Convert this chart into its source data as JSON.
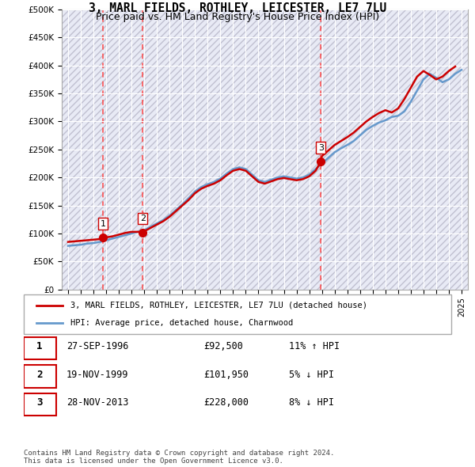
{
  "title": "3, MARL FIELDS, ROTHLEY, LEICESTER, LE7 7LU",
  "subtitle": "Price paid vs. HM Land Registry's House Price Index (HPI)",
  "hpi_label": "HPI: Average price, detached house, Charnwood",
  "property_label": "3, MARL FIELDS, ROTHLEY, LEICESTER, LE7 7LU (detached house)",
  "copyright": "Contains HM Land Registry data © Crown copyright and database right 2024.\nThis data is licensed under the Open Government Licence v3.0.",
  "sales": [
    {
      "num": 1,
      "date": "27-SEP-1996",
      "price": 92500,
      "hpi_diff": "11% ↑ HPI",
      "year": 1996.75
    },
    {
      "num": 2,
      "date": "19-NOV-1999",
      "price": 101950,
      "hpi_diff": "5% ↓ HPI",
      "year": 1999.88
    },
    {
      "num": 3,
      "date": "28-NOV-2013",
      "price": 228000,
      "hpi_diff": "8% ↓ HPI",
      "year": 2013.91
    }
  ],
  "ylim": [
    0,
    500000
  ],
  "yticks": [
    0,
    50000,
    100000,
    150000,
    200000,
    250000,
    300000,
    350000,
    400000,
    450000,
    500000
  ],
  "xlim_start": 1993.5,
  "xlim_end": 2025.5,
  "hpi_color": "#6699cc",
  "price_color": "#cc0000",
  "dashed_line_color": "#ff4444",
  "background_hatch_color": "#e8e8f0",
  "grid_color": "#cccccc",
  "sale_marker_color": "#cc0000",
  "hpi_x": [
    1994,
    1994.5,
    1995,
    1995.5,
    1996,
    1996.5,
    1997,
    1997.5,
    1998,
    1998.5,
    1999,
    1999.5,
    2000,
    2000.5,
    2001,
    2001.5,
    2002,
    2002.5,
    2003,
    2003.5,
    2004,
    2004.5,
    2005,
    2005.5,
    2006,
    2006.5,
    2007,
    2007.5,
    2008,
    2008.5,
    2009,
    2009.5,
    2010,
    2010.5,
    2011,
    2011.5,
    2012,
    2012.5,
    2013,
    2013.5,
    2014,
    2014.5,
    2015,
    2015.5,
    2016,
    2016.5,
    2017,
    2017.5,
    2018,
    2018.5,
    2019,
    2019.5,
    2020,
    2020.5,
    2021,
    2021.5,
    2022,
    2022.5,
    2023,
    2023.5,
    2024,
    2024.5,
    2025
  ],
  "hpi_y": [
    78000,
    79000,
    80000,
    82000,
    83000,
    85000,
    88000,
    91000,
    94000,
    97000,
    100000,
    103000,
    106000,
    112000,
    118000,
    124000,
    132000,
    142000,
    152000,
    163000,
    175000,
    183000,
    188000,
    192000,
    198000,
    207000,
    215000,
    218000,
    215000,
    205000,
    195000,
    192000,
    196000,
    200000,
    202000,
    200000,
    198000,
    200000,
    205000,
    215000,
    225000,
    235000,
    245000,
    252000,
    258000,
    265000,
    275000,
    285000,
    292000,
    298000,
    302000,
    308000,
    310000,
    318000,
    335000,
    355000,
    375000,
    385000,
    378000,
    370000,
    375000,
    385000,
    392000
  ],
  "price_x": [
    1994,
    1994.5,
    1995,
    1995.5,
    1996,
    1996.5,
    1996.75,
    1997,
    1997.5,
    1998,
    1998.5,
    1999,
    1999.5,
    1999.88,
    2000,
    2000.5,
    2001,
    2001.5,
    2002,
    2002.5,
    2003,
    2003.5,
    2004,
    2004.5,
    2005,
    2005.5,
    2006,
    2006.5,
    2007,
    2007.5,
    2008,
    2008.5,
    2009,
    2009.5,
    2010,
    2010.5,
    2011,
    2011.5,
    2012,
    2012.5,
    2013,
    2013.5,
    2013.91,
    2014,
    2014.5,
    2015,
    2015.5,
    2016,
    2016.5,
    2017,
    2017.5,
    2018,
    2018.5,
    2019,
    2019.5,
    2020,
    2020.5,
    2021,
    2021.5,
    2022,
    2022.5,
    2023,
    2023.5,
    2024,
    2024.5
  ],
  "price_y": [
    85000,
    86000,
    87000,
    88000,
    89000,
    90000,
    92500,
    93000,
    95000,
    98000,
    101000,
    103000,
    103000,
    101950,
    104000,
    110000,
    116000,
    122000,
    130000,
    140000,
    150000,
    160000,
    172000,
    180000,
    185000,
    189000,
    195000,
    204000,
    212000,
    215000,
    212000,
    202000,
    192000,
    189000,
    193000,
    197000,
    199000,
    197000,
    195000,
    197000,
    202000,
    212000,
    228000,
    238000,
    248000,
    258000,
    265000,
    272000,
    280000,
    290000,
    300000,
    308000,
    315000,
    320000,
    316000,
    323000,
    340000,
    360000,
    380000,
    390000,
    383000,
    375000,
    380000,
    390000,
    398000
  ]
}
